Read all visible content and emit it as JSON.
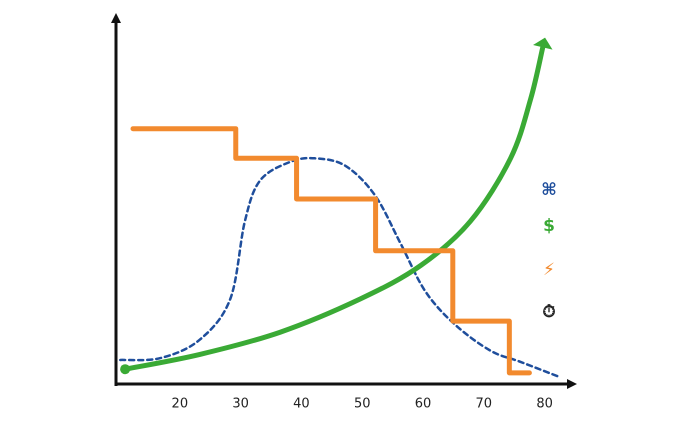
{
  "chart_data": {
    "type": "line",
    "xlim": [
      9.5,
      85
    ],
    "ylim": [
      0,
      100
    ],
    "xticks": [
      20,
      30,
      40,
      50,
      60,
      70,
      80
    ],
    "series": [
      {
        "name": "⌘",
        "color": "#1f4e9c",
        "style": "dashed",
        "smooth": true,
        "x": [
          10.2,
          16.8,
          23.3,
          28.3,
          30.7,
          33.2,
          38.1,
          42.2,
          47.2,
          52.1,
          56.3,
          60.4,
          65.3,
          71.1,
          76,
          82.3
        ],
        "values": [
          6.5,
          7,
          12,
          23,
          44,
          55,
          60,
          61,
          59,
          51,
          38,
          25,
          16,
          9,
          6,
          2
        ]
      },
      {
        "name": "$",
        "color": "#3aaa35",
        "style": "solid",
        "smooth": true,
        "arrow": true,
        "x": [
          11,
          23.3,
          36.5,
          49.7,
          59.6,
          67.8,
          74.4,
          77.7,
          79.7
        ],
        "values": [
          4,
          8,
          14,
          23,
          32,
          44,
          61,
          77,
          91
        ]
      },
      {
        "name": "⚡",
        "color": "#f28a2e",
        "style": "solid",
        "smooth": false,
        "x": [
          12.3,
          29.2,
          29.2,
          39.2,
          39.2,
          52.2,
          52.2,
          64.9,
          64.9,
          74.2,
          74.2,
          77.5
        ],
        "values": [
          69,
          69,
          61,
          61,
          50,
          50,
          36,
          36,
          17,
          17,
          3,
          3
        ]
      }
    ],
    "extra_legend": [
      {
        "name": "⏱",
        "color": "#222222"
      }
    ]
  }
}
